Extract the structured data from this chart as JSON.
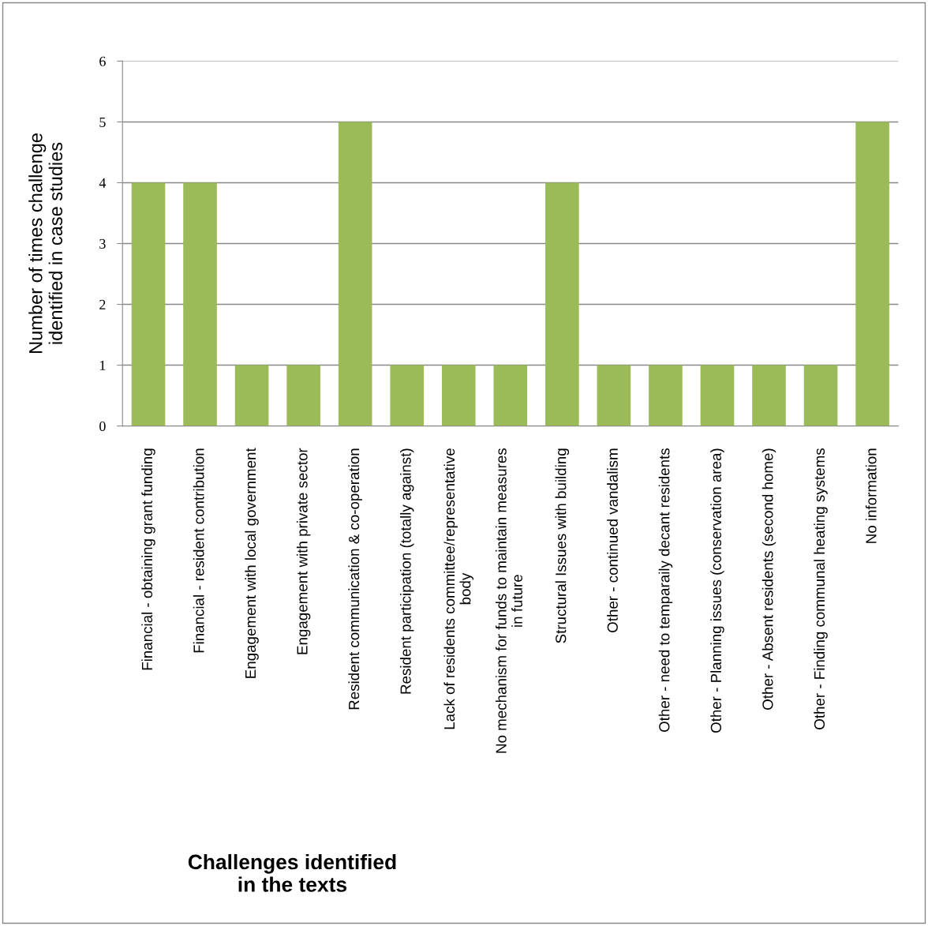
{
  "chart_data": {
    "type": "bar",
    "xlabel": "Challenges identified\nin the texts",
    "ylabel": "Number of times challenge\nidentified in case studies",
    "categories": [
      "Financial - obtaining grant funding",
      "Financial - resident contribution",
      "Engagement with local government",
      "Engagement with private sector",
      "Resident communication & co-operation",
      "Resident participation (totally against)",
      "Lack of residents committee/representative\nbody",
      "No mechanism for funds to maintain measures\nin future",
      "Structural Issues with building",
      "Other - continued vandalism",
      "Other - need to temparaily decant residents",
      "Other - Planning issues (conservation area)",
      "Other - Absent residents (second home)",
      "Other - Finding communal heating systems",
      "No information"
    ],
    "values": [
      4,
      4,
      1,
      1,
      5,
      1,
      1,
      1,
      4,
      1,
      1,
      1,
      1,
      1,
      5
    ],
    "color": "#9bbb59",
    "ylim": [
      0,
      6
    ],
    "yticks": [
      0,
      1,
      2,
      3,
      4,
      5,
      6
    ],
    "grid": "y",
    "legend": false
  }
}
